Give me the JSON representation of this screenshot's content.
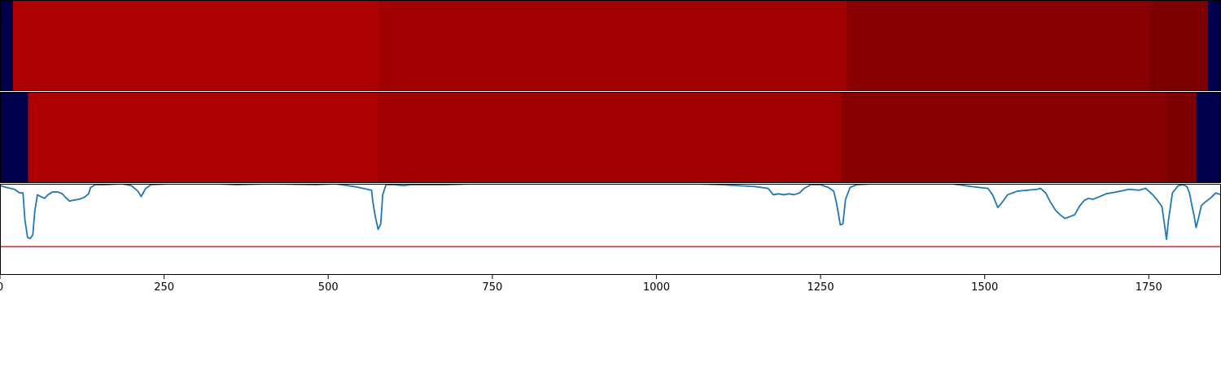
{
  "chart_data": [
    {
      "type": "heatmap",
      "panel": "top",
      "xlim": [
        0,
        1860
      ],
      "segments": [
        {
          "start": 0,
          "end": 20,
          "color": "#00004c"
        },
        {
          "start": 20,
          "end": 578,
          "color": "#ad0000"
        },
        {
          "start": 578,
          "end": 1290,
          "color": "#a00000"
        },
        {
          "start": 1290,
          "end": 1750,
          "color": "#890000"
        },
        {
          "start": 1750,
          "end": 1840,
          "color": "#7d0000"
        },
        {
          "start": 1840,
          "end": 1860,
          "color": "#00004c"
        }
      ]
    },
    {
      "type": "heatmap",
      "panel": "middle",
      "xlim": [
        0,
        1860
      ],
      "segments": [
        {
          "start": 0,
          "end": 43,
          "color": "#00004c"
        },
        {
          "start": 43,
          "end": 576,
          "color": "#ad0000"
        },
        {
          "start": 576,
          "end": 1281,
          "color": "#a00000"
        },
        {
          "start": 1281,
          "end": 1777,
          "color": "#890000"
        },
        {
          "start": 1777,
          "end": 1823,
          "color": "#7d0000"
        },
        {
          "start": 1823,
          "end": 1860,
          "color": "#00004c"
        }
      ]
    },
    {
      "type": "line",
      "panel": "bottom",
      "xlim": [
        0,
        1860
      ],
      "ylim": [
        0,
        1
      ],
      "line_color": "#1f77b4",
      "threshold": {
        "value": 0.31,
        "color": "#e8251e"
      },
      "points": [
        [
          0,
          0.98
        ],
        [
          10,
          0.96
        ],
        [
          22,
          0.94
        ],
        [
          30,
          0.9
        ],
        [
          35,
          0.9
        ],
        [
          38,
          0.6
        ],
        [
          42,
          0.41
        ],
        [
          46,
          0.4
        ],
        [
          50,
          0.44
        ],
        [
          53,
          0.7
        ],
        [
          57,
          0.88
        ],
        [
          62,
          0.86
        ],
        [
          68,
          0.84
        ],
        [
          73,
          0.88
        ],
        [
          80,
          0.91
        ],
        [
          88,
          0.91
        ],
        [
          95,
          0.89
        ],
        [
          100,
          0.85
        ],
        [
          106,
          0.81
        ],
        [
          112,
          0.82
        ],
        [
          120,
          0.83
        ],
        [
          128,
          0.85
        ],
        [
          135,
          0.89
        ],
        [
          138,
          0.96
        ],
        [
          145,
          0.99
        ],
        [
          160,
          0.99
        ],
        [
          185,
          1.0
        ],
        [
          200,
          0.98
        ],
        [
          210,
          0.92
        ],
        [
          215,
          0.86
        ],
        [
          222,
          0.95
        ],
        [
          230,
          0.99
        ],
        [
          260,
          1.0
        ],
        [
          330,
          1.0
        ],
        [
          360,
          0.99
        ],
        [
          410,
          1.0
        ],
        [
          480,
          0.99
        ],
        [
          510,
          1.0
        ],
        [
          540,
          0.97
        ],
        [
          566,
          0.93
        ],
        [
          568,
          0.8
        ],
        [
          572,
          0.63
        ],
        [
          576,
          0.5
        ],
        [
          580,
          0.56
        ],
        [
          583,
          0.88
        ],
        [
          588,
          0.99
        ],
        [
          600,
          0.99
        ],
        [
          615,
          0.98
        ],
        [
          625,
          0.99
        ],
        [
          640,
          0.99
        ],
        [
          680,
          0.99
        ],
        [
          720,
          1.0
        ],
        [
          800,
          1.0
        ],
        [
          880,
          1.0
        ],
        [
          960,
          1.0
        ],
        [
          1000,
          1.0
        ],
        [
          1030,
          1.0
        ],
        [
          1060,
          1.0
        ],
        [
          1100,
          0.99
        ],
        [
          1150,
          0.97
        ],
        [
          1170,
          0.95
        ],
        [
          1178,
          0.88
        ],
        [
          1186,
          0.89
        ],
        [
          1194,
          0.88
        ],
        [
          1202,
          0.89
        ],
        [
          1210,
          0.88
        ],
        [
          1218,
          0.9
        ],
        [
          1225,
          0.95
        ],
        [
          1235,
          0.99
        ],
        [
          1250,
          0.99
        ],
        [
          1262,
          0.96
        ],
        [
          1270,
          0.92
        ],
        [
          1274,
          0.8
        ],
        [
          1277,
          0.68
        ],
        [
          1280,
          0.55
        ],
        [
          1284,
          0.56
        ],
        [
          1288,
          0.83
        ],
        [
          1295,
          0.96
        ],
        [
          1305,
          0.99
        ],
        [
          1330,
          1.0
        ],
        [
          1400,
          1.0
        ],
        [
          1450,
          1.0
        ],
        [
          1480,
          0.97
        ],
        [
          1505,
          0.95
        ],
        [
          1512,
          0.88
        ],
        [
          1520,
          0.74
        ],
        [
          1527,
          0.8
        ],
        [
          1535,
          0.88
        ],
        [
          1550,
          0.92
        ],
        [
          1565,
          0.93
        ],
        [
          1580,
          0.94
        ],
        [
          1585,
          0.95
        ],
        [
          1593,
          0.9
        ],
        [
          1600,
          0.8
        ],
        [
          1608,
          0.71
        ],
        [
          1615,
          0.66
        ],
        [
          1622,
          0.62
        ],
        [
          1630,
          0.64
        ],
        [
          1637,
          0.66
        ],
        [
          1645,
          0.76
        ],
        [
          1652,
          0.82
        ],
        [
          1658,
          0.84
        ],
        [
          1665,
          0.83
        ],
        [
          1672,
          0.85
        ],
        [
          1685,
          0.89
        ],
        [
          1700,
          0.91
        ],
        [
          1720,
          0.94
        ],
        [
          1735,
          0.93
        ],
        [
          1745,
          0.95
        ],
        [
          1750,
          0.92
        ],
        [
          1756,
          0.88
        ],
        [
          1763,
          0.82
        ],
        [
          1770,
          0.75
        ],
        [
          1774,
          0.55
        ],
        [
          1777,
          0.39
        ],
        [
          1780,
          0.6
        ],
        [
          1786,
          0.9
        ],
        [
          1795,
          0.98
        ],
        [
          1802,
          0.99
        ],
        [
          1808,
          0.97
        ],
        [
          1812,
          0.9
        ],
        [
          1816,
          0.75
        ],
        [
          1819,
          0.65
        ],
        [
          1822,
          0.52
        ],
        [
          1826,
          0.63
        ],
        [
          1830,
          0.76
        ],
        [
          1836,
          0.8
        ],
        [
          1845,
          0.85
        ],
        [
          1852,
          0.9
        ],
        [
          1860,
          0.88
        ]
      ]
    }
  ],
  "x_axis": {
    "ticks": [
      {
        "value": 0,
        "label": "0"
      },
      {
        "value": 250,
        "label": "250"
      },
      {
        "value": 500,
        "label": "500"
      },
      {
        "value": 750,
        "label": "750"
      },
      {
        "value": 1000,
        "label": "1000"
      },
      {
        "value": 1250,
        "label": "1250"
      },
      {
        "value": 1500,
        "label": "1500"
      },
      {
        "value": 1750,
        "label": "1750"
      }
    ]
  }
}
